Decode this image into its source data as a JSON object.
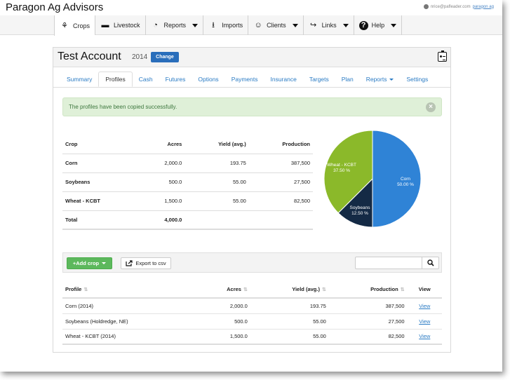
{
  "app": {
    "brand": "Paragon Ag Advisors",
    "user_email": "nrice@pafleader.com",
    "user_link": "paragon ag"
  },
  "topnav": [
    {
      "label": "Crops",
      "icon": "plant-icon",
      "active": true,
      "dropdown": false
    },
    {
      "label": "Livestock",
      "icon": "cow-icon",
      "active": false,
      "dropdown": false
    },
    {
      "label": "Reports",
      "icon": "pie-chart-icon",
      "active": false,
      "dropdown": true
    },
    {
      "label": "Imports",
      "icon": "import-icon",
      "active": false,
      "dropdown": false
    },
    {
      "label": "Clients",
      "icon": "users-icon",
      "active": false,
      "dropdown": true
    },
    {
      "label": "Links",
      "icon": "share-icon",
      "active": false,
      "dropdown": true
    },
    {
      "label": "Help",
      "icon": "question-icon",
      "active": false,
      "dropdown": true
    }
  ],
  "account": {
    "title": "Test Account",
    "year": "2014",
    "change_label": "Change"
  },
  "subtabs": [
    {
      "label": "Summary"
    },
    {
      "label": "Profiles",
      "active": true
    },
    {
      "label": "Cash"
    },
    {
      "label": "Futures"
    },
    {
      "label": "Options"
    },
    {
      "label": "Payments"
    },
    {
      "label": "Insurance"
    },
    {
      "label": "Targets"
    },
    {
      "label": "Plan"
    },
    {
      "label": "Reports",
      "dropdown": true
    },
    {
      "label": "Settings"
    }
  ],
  "alert": {
    "message": "The profiles have been copied successfully.",
    "close": "×"
  },
  "summary": {
    "headers": [
      "Crop",
      "Acres",
      "Yield (avg.)",
      "Production"
    ],
    "rows": [
      [
        "Corn",
        "2,000.0",
        "193.75",
        "387,500"
      ],
      [
        "Soybeans",
        "500.0",
        "55.00",
        "27,500"
      ],
      [
        "Wheat - KCBT",
        "1,500.0",
        "55.00",
        "82,500"
      ],
      [
        "Total",
        "4,000.0",
        "",
        ""
      ]
    ]
  },
  "pie": {
    "colors": {
      "Corn": "#2f83d6",
      "Soybeans": "#142a45",
      "Wheat - KCBT": "#8bb92a"
    },
    "slices": [
      {
        "name": "Corn",
        "pct": 50.0,
        "label": "50.00 %"
      },
      {
        "name": "Soybeans",
        "pct": 12.5,
        "label": "12.50 %"
      },
      {
        "name": "Wheat - KCBT",
        "pct": 37.5,
        "label": "37.50 %"
      }
    ],
    "display_names": {
      "Corn": "Corn",
      "Soybeans": "Soybeans",
      "Wheat - KCBT": "Wheat - KCBT"
    }
  },
  "toolbar": {
    "add_label": "+Add crop",
    "export_label": "Export to csv",
    "search_placeholder": ""
  },
  "profiles": {
    "headers": [
      "Profile",
      "Acres",
      "Yield (avg.)",
      "Production",
      "View"
    ],
    "rows": [
      [
        "Corn (2014)",
        "2,000.0",
        "193.75",
        "387,500",
        "View"
      ],
      [
        "Soybeans (Holdredge, NE)",
        "500.0",
        "55.00",
        "27,500",
        "View"
      ],
      [
        "Wheat - KCBT (2014)",
        "1,500.0",
        "55.00",
        "82,500",
        "View"
      ]
    ]
  }
}
